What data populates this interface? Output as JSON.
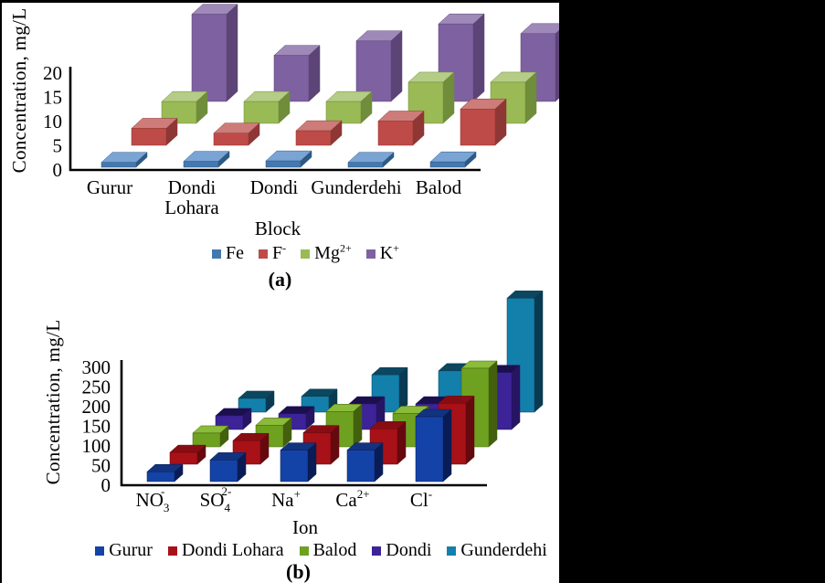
{
  "page": {
    "background_color": "#000000",
    "content_background": "#ffffff"
  },
  "chart_data": [
    {
      "panel": "a",
      "type": "bar",
      "projection": "3d-column",
      "caption": "(a)",
      "y_axis_title": "Concentration, mg/L",
      "x_axis_title": "Block",
      "y_ticks": [
        0,
        5,
        10,
        15,
        20
      ],
      "y_range": [
        0,
        20
      ],
      "grid": false,
      "legend_position": "bottom",
      "categories": [
        {
          "lines": [
            "Gurur"
          ]
        },
        {
          "lines": [
            "Dondi",
            "Lohara"
          ]
        },
        {
          "lines": [
            "Dondi"
          ]
        },
        {
          "lines": [
            "Gunderdehi"
          ]
        },
        {
          "lines": [
            "Balod"
          ]
        }
      ],
      "series": [
        {
          "label": {
            "main": "Fe"
          },
          "values": [
            1,
            1.2,
            1.3,
            1,
            1.1
          ],
          "color": {
            "front": "#4478B1",
            "top": "#7AA4D4",
            "side": "#2E5984"
          }
        },
        {
          "label": {
            "main": "F",
            "sup": "-"
          },
          "values": [
            3.5,
            2.5,
            3,
            5,
            7.5
          ],
          "color": {
            "front": "#BE4B48",
            "top": "#CD7C79",
            "side": "#8E3734"
          }
        },
        {
          "label": {
            "main": "Mg",
            "sup": "2+"
          },
          "values": [
            4.5,
            4.5,
            4.5,
            8.5,
            8.5
          ],
          "color": {
            "front": "#9ABA55",
            "top": "#B5CC86",
            "side": "#6F8D3B"
          }
        },
        {
          "label": {
            "main": "K",
            "sup": "+"
          },
          "values": [
            18,
            9.5,
            12.5,
            16,
            14
          ],
          "color": {
            "front": "#7E61A1",
            "top": "#9E89B8",
            "side": "#5C4576"
          }
        }
      ]
    },
    {
      "panel": "b",
      "type": "bar",
      "projection": "3d-column",
      "caption": "(b)",
      "y_axis_title": "Concentration, mg/L",
      "x_axis_title": "Ion",
      "y_ticks": [
        0,
        50,
        100,
        150,
        200,
        250,
        300
      ],
      "y_range": [
        0,
        300
      ],
      "grid": false,
      "legend_position": "bottom",
      "categories": [
        {
          "main": "NO",
          "sub": "3",
          "sup": "-"
        },
        {
          "main": "SO",
          "sub": "4",
          "sup": "2-"
        },
        {
          "main": "Na",
          "sup": "+"
        },
        {
          "main": "Ca",
          "sup": "2+"
        },
        {
          "main": "Cl",
          "sup": "-"
        }
      ],
      "series": [
        {
          "label": {
            "main": "Gurur"
          },
          "values": [
            25,
            55,
            80,
            80,
            165
          ],
          "color": {
            "front": "#1443A7",
            "top": "#12337F",
            "side": "#0A1C55"
          }
        },
        {
          "label": {
            "main": "Dondi Lohara"
          },
          "values": [
            30,
            60,
            80,
            90,
            155
          ],
          "color": {
            "front": "#A81117",
            "top": "#880D12",
            "side": "#65090F"
          }
        },
        {
          "label": {
            "main": "Balod"
          },
          "values": [
            35,
            55,
            90,
            85,
            200
          ],
          "color": {
            "front": "#6FA120",
            "top": "#8ABB3A",
            "side": "#42600D"
          }
        },
        {
          "label": {
            "main": "Dondi"
          },
          "values": [
            35,
            40,
            65,
            65,
            145
          ],
          "color": {
            "front": "#3C2397",
            "top": "#1C0F4D",
            "side": "#271463"
          }
        },
        {
          "label": {
            "main": "Gunderdehi"
          },
          "values": [
            35,
            40,
            95,
            105,
            290
          ],
          "color": {
            "front": "#1380AC",
            "top": "#0C465F",
            "side": "#093A52"
          }
        }
      ]
    }
  ]
}
